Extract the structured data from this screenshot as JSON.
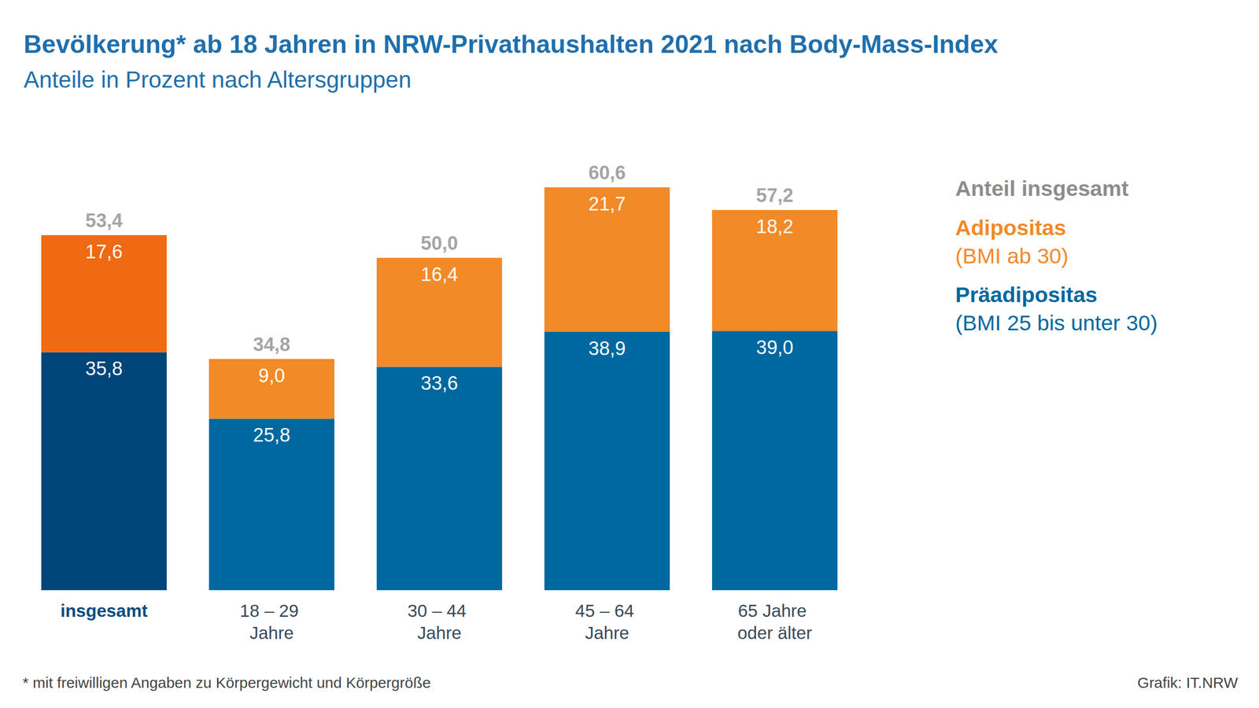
{
  "chart_data": {
    "type": "bar",
    "title": "Bevölkerung* ab 18 Jahren in NRW-Privathaushalten 2021 nach Body-Mass-Index",
    "subtitle": "Anteile in Prozent nach Altersgruppen",
    "categories": [
      "insgesamt",
      "18 – 29 Jahre",
      "30 – 44 Jahre",
      "45 – 64 Jahre",
      "65 Jahre oder älter"
    ],
    "series": [
      {
        "name": "Präadipositas",
        "note": "(BMI 25 bis unter 30)",
        "color": "#0068a0",
        "colors": [
          "#00457a",
          "#0068a0",
          "#0068a0",
          "#0068a0",
          "#0068a0"
        ],
        "values": [
          35.8,
          25.8,
          33.6,
          38.9,
          39.0
        ],
        "value_labels": [
          "35,8",
          "25,8",
          "33,6",
          "38,9",
          "39,0"
        ]
      },
      {
        "name": "Adipositas",
        "note": "(BMI ab 30)",
        "color": "#f28a28",
        "colors": [
          "#ef6a12",
          "#f28a28",
          "#f28a28",
          "#f28a28",
          "#f28a28"
        ],
        "values": [
          17.6,
          9.0,
          16.4,
          21.7,
          18.2
        ],
        "value_labels": [
          "17,6",
          "9,0",
          "16,4",
          "21,7",
          "18,2"
        ]
      }
    ],
    "totals_name": "Anteil insgesamt",
    "totals": [
      53.4,
      34.8,
      50.0,
      60.6,
      57.2
    ],
    "total_labels": [
      "53,4",
      "34,8",
      "50,0",
      "60,6",
      "57,2"
    ],
    "stacked": true,
    "data_labels": true,
    "ylim": [
      0,
      70
    ],
    "grid": false,
    "tick_labels": "x",
    "footnote": "* mit freiwilligen Angaben zu Körpergewicht und Körpergröße",
    "source": "Grafik: IT.NRW"
  }
}
